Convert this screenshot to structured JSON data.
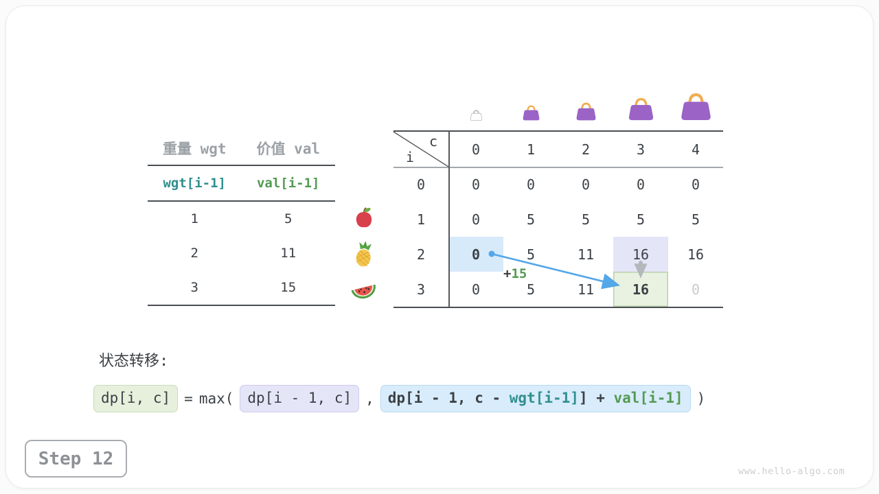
{
  "colors": {
    "text": "#3b4045",
    "muted_header": "#9ba1a6",
    "teal": "#2f8f8f",
    "green": "#539a53",
    "arrow_blue": "#54a7e8",
    "arrow_gray": "#b4b8bc",
    "highlight_blue": "#d7eafa",
    "highlight_lavender": "#e5e5f8",
    "highlight_green": "#e9f1e0",
    "bag_purple": "#9b63c6",
    "bag_handle_orange": "#f0ad4e"
  },
  "items_table": {
    "headers": [
      "重量 wgt",
      "价值 val"
    ],
    "subheaders": [
      {
        "text": "wgt[i-1]",
        "color": "teal"
      },
      {
        "text": "val[i-1]",
        "color": "green"
      }
    ],
    "rows": [
      {
        "wgt": "1",
        "val": "5",
        "fruit": "apple-icon"
      },
      {
        "wgt": "2",
        "val": "11",
        "fruit": "pineapple-icon"
      },
      {
        "wgt": "3",
        "val": "15",
        "fruit": "watermelon-icon"
      }
    ]
  },
  "dp_table": {
    "corner": {
      "row_var": "i",
      "col_var": "c"
    },
    "col_headers": [
      "0",
      "1",
      "2",
      "3",
      "4"
    ],
    "row_headers": [
      "0",
      "1",
      "2",
      "3"
    ],
    "cells": [
      [
        "0",
        "0",
        "0",
        "0",
        "0"
      ],
      [
        "0",
        "5",
        "5",
        "5",
        "5"
      ],
      [
        "0",
        "5",
        "11",
        "16",
        "16"
      ],
      [
        "0",
        "5",
        "11",
        "16",
        "0"
      ]
    ],
    "highlights": [
      {
        "row": 2,
        "col": 0,
        "style": "blue"
      },
      {
        "row": 2,
        "col": 3,
        "style": "lavender"
      },
      {
        "row": 3,
        "col": 3,
        "style": "green"
      }
    ],
    "faded_cells": [
      {
        "row": 3,
        "col": 4
      }
    ],
    "bags": [
      "empty-bag-icon",
      "bag-icon",
      "bag-icon",
      "bag-icon",
      "bag-icon"
    ],
    "annotation": {
      "plus": "+",
      "value": "15"
    }
  },
  "transition": {
    "heading": "状态转移:",
    "formula": [
      {
        "type": "box",
        "style": "green",
        "bold": false,
        "segments": [
          {
            "text": "dp[i, c]",
            "color": "dark"
          }
        ]
      },
      {
        "type": "plain",
        "text": "="
      },
      {
        "type": "plain",
        "text": "max("
      },
      {
        "type": "box",
        "style": "lavender",
        "bold": false,
        "segments": [
          {
            "text": "dp[i - 1, c]",
            "color": "dark"
          }
        ]
      },
      {
        "type": "plain",
        "text": ","
      },
      {
        "type": "box",
        "style": "blue",
        "bold": true,
        "segments": [
          {
            "text": "dp[i - 1, c - ",
            "color": "dark"
          },
          {
            "text": "wgt[i-1]",
            "color": "teal"
          },
          {
            "text": "] + ",
            "color": "dark"
          },
          {
            "text": "val[i-1]",
            "color": "green"
          }
        ]
      },
      {
        "type": "plain",
        "text": ")"
      }
    ]
  },
  "step_badge": {
    "label": "Step 12"
  },
  "watermark": {
    "text": "www.hello-algo.com"
  }
}
